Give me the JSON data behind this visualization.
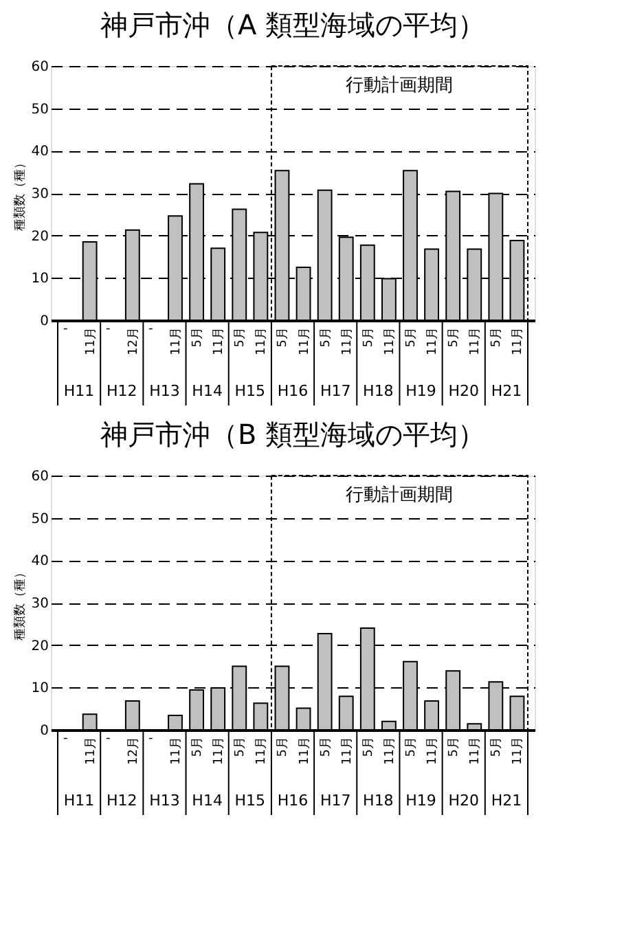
{
  "chart_data": [
    {
      "type": "bar",
      "title": "神戸市沖（A 類型海域の平均）",
      "ylabel": "種類数（種）",
      "categories": [
        "'",
        "11月",
        "'",
        "12月",
        "'",
        "11月",
        "5月",
        "11月",
        "5月",
        "11月",
        "5月",
        "11月",
        "5月",
        "11月",
        "5月",
        "11月",
        "5月",
        "11月",
        "5月",
        "11月",
        "5月",
        "11月"
      ],
      "values": [
        null,
        18.5,
        null,
        21.3,
        null,
        24.6,
        32.2,
        17.0,
        26.2,
        20.7,
        35.3,
        12.5,
        30.7,
        19.6,
        17.7,
        9.8,
        35.3,
        16.8,
        30.4,
        16.8,
        29.9,
        18.8
      ],
      "color": "#c0c0c0",
      "annotations": [
        "H11",
        "H12",
        "H13",
        "H14",
        "H15",
        "H16",
        "H17",
        "H18",
        "H19",
        "H20",
        "H21",
        "行動計画期間"
      ],
      "ylim": [
        0,
        60
      ],
      "yticks": [
        0,
        10,
        20,
        30,
        40,
        50,
        60
      ],
      "grid": "y"
    },
    {
      "type": "bar",
      "title": "神戸市沖（B 類型海域の平均）",
      "ylabel": "種類数（種）",
      "categories": [
        "'",
        "11月",
        "'",
        "12月",
        "'",
        "11月",
        "5月",
        "11月",
        "5月",
        "11月",
        "5月",
        "11月",
        "5月",
        "11月",
        "5月",
        "11月",
        "5月",
        "11月",
        "5月",
        "11月",
        "5月",
        "11月"
      ],
      "values": [
        null,
        3.7,
        null,
        6.8,
        null,
        3.4,
        9.4,
        9.9,
        15.0,
        6.3,
        15.0,
        5.1,
        22.7,
        7.9,
        24.0,
        2.0,
        16.1,
        6.8,
        13.9,
        1.4,
        11.3,
        7.9
      ],
      "color": "#c0c0c0",
      "annotations": [
        "H11",
        "H12",
        "H13",
        "H14",
        "H15",
        "H16",
        "H17",
        "H18",
        "H19",
        "H20",
        "H21",
        "行動計画期間"
      ],
      "ylim": [
        0,
        60
      ],
      "yticks": [
        0,
        10,
        20,
        30,
        40,
        50,
        60
      ],
      "grid": "y"
    }
  ]
}
